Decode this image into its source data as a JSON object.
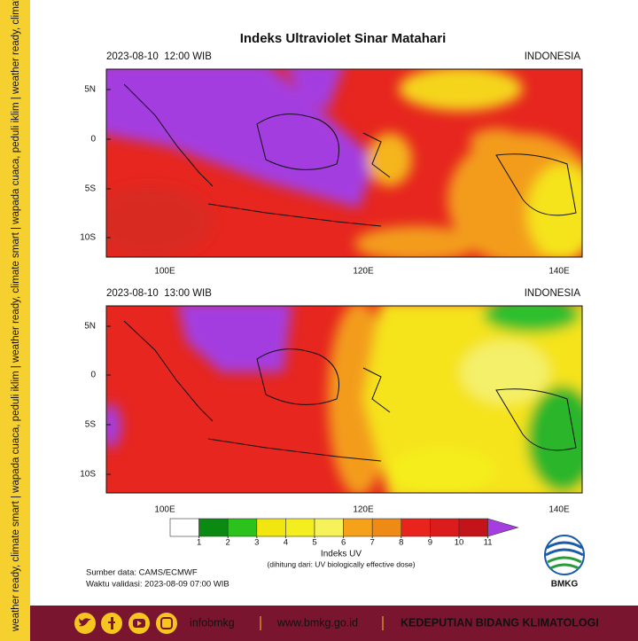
{
  "sidebar_text": "weather ready, climate smart | wapada cuaca, peduli iklim | weather ready, climate smart | wapada cuaca, peduli iklim | weather ready, climate smart | wapada cuaca, peduli iklim",
  "title": "Indeks Ultraviolet Sinar Matahari",
  "panels": [
    {
      "datetime": "2023-08-10  12:00 WIB",
      "region": "INDONESIA"
    },
    {
      "datetime": "2023-08-10  13:00 WIB",
      "region": "INDONESIA"
    }
  ],
  "lat_labels": [
    "5N",
    "0",
    "5S",
    "10S"
  ],
  "lon_labels": [
    "100E",
    "120E",
    "140E"
  ],
  "colorbar": {
    "ticks": [
      1,
      2,
      3,
      4,
      5,
      6,
      7,
      8,
      9,
      10,
      11
    ],
    "colors": [
      "#ffffff",
      "#0a8a12",
      "#2cc21c",
      "#f2e611",
      "#f5ee1f",
      "#f6f25a",
      "#f5a21a",
      "#ef8a14",
      "#e8241c",
      "#dc1c1c",
      "#c3141a",
      "#a43ee0"
    ],
    "label": "Indeks UV",
    "note": "(dihitung dari: UV biologically effective dose)"
  },
  "source": "Sumber data: CAMS/ECMWF",
  "validity": "Waktu validasi: 2023-08-09 07:00 WIB",
  "logo_text": "BMKG",
  "footer": {
    "handle": "infobmkg",
    "website": "www.bmkg.go.id",
    "department": "KEDEPUTIAN BIDANG KLIMATOLOGI"
  }
}
